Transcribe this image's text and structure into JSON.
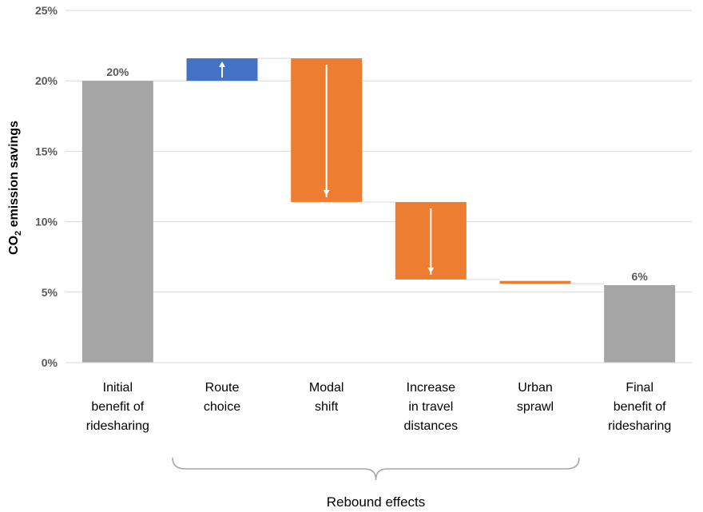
{
  "chart_data": {
    "type": "bar",
    "subtype": "waterfall",
    "title": "",
    "xlabel": "",
    "ylabel": {
      "prefix": "CO",
      "subscript": "2",
      "suffix": " emission savings"
    },
    "ylim": [
      0,
      25
    ],
    "yticks": [
      0,
      5,
      10,
      15,
      20,
      25
    ],
    "ytick_labels": [
      "0%",
      "5%",
      "10%",
      "15%",
      "20%",
      "25%"
    ],
    "grid": "horizontal",
    "legend": "none",
    "categories": [
      [
        "Initial",
        "benefit of",
        "ridesharing"
      ],
      [
        "Route",
        "choice"
      ],
      [
        "Modal",
        "shift"
      ],
      [
        "Increase",
        "in travel",
        "distances"
      ],
      [
        "Urban",
        "sprawl"
      ],
      [
        "Final",
        "benefit of",
        "ridesharing"
      ]
    ],
    "bars": [
      {
        "kind": "total",
        "start": 0,
        "end": 20,
        "color": "#a5a5a5",
        "label": "20%"
      },
      {
        "kind": "increase",
        "start": 20,
        "end": 21.6,
        "color": "#4472c4",
        "arrow": "up"
      },
      {
        "kind": "decrease",
        "start": 21.6,
        "end": 11.4,
        "color": "#ed7d31",
        "arrow": "down"
      },
      {
        "kind": "decrease",
        "start": 11.4,
        "end": 5.9,
        "color": "#ed7d31",
        "arrow": "down"
      },
      {
        "kind": "decrease",
        "start": 5.8,
        "end": 5.6,
        "color": "#ed7d31"
      },
      {
        "kind": "total",
        "start": 0,
        "end": 5.5,
        "color": "#a5a5a5",
        "label": "6%"
      }
    ],
    "group_annotation": {
      "label": "Rebound effects",
      "from_category": 1,
      "to_category": 4
    }
  }
}
